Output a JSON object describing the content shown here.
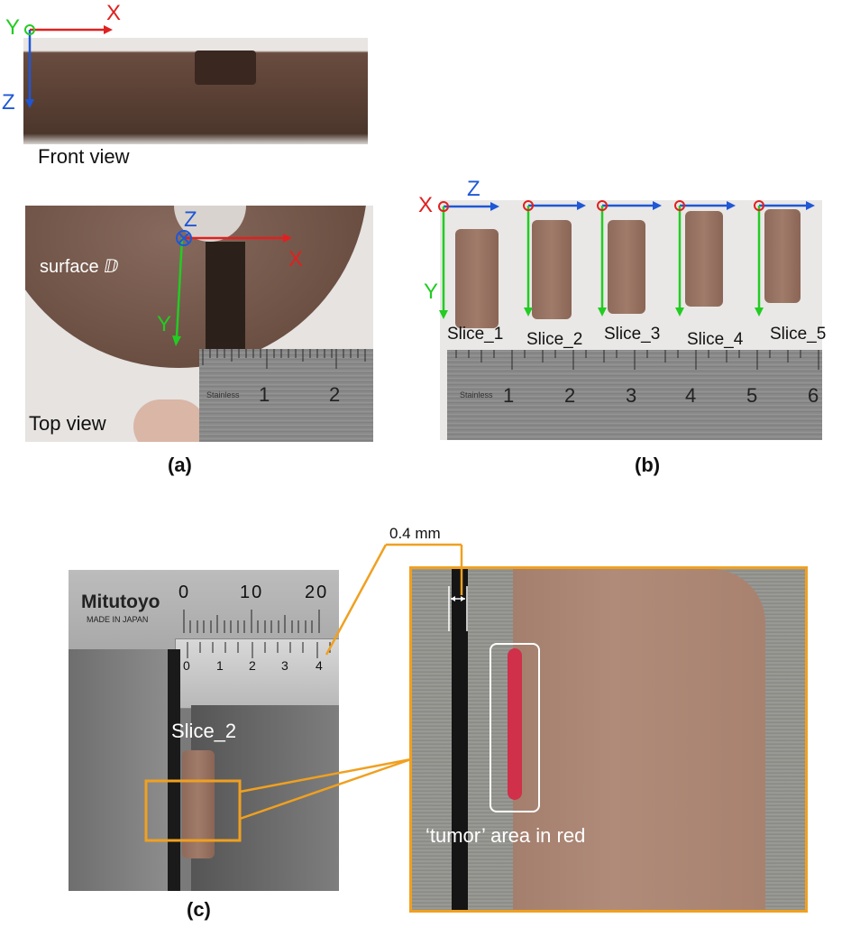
{
  "panels": {
    "a": {
      "label": "(a)",
      "front_view_caption": "Front view",
      "top_view_caption": "Top view",
      "surface_label": "surface ⅅ",
      "axes_front": {
        "y": "Y",
        "x": "X",
        "z": "Z"
      },
      "axes_top": {
        "z": "Z",
        "x": "X",
        "y": "Y"
      },
      "ruler_brand": "Stainless",
      "ruler_ticks": [
        "1",
        "2"
      ]
    },
    "b": {
      "label": "(b)",
      "axes": {
        "x": "X",
        "z": "Z",
        "y": "Y"
      },
      "slices": [
        "Slice_1",
        "Slice_2",
        "Slice_3",
        "Slice_4",
        "Slice_5"
      ],
      "ruler_brand": "Stainless",
      "ruler_ticks": [
        "1",
        "2",
        "3",
        "4",
        "5",
        "6"
      ]
    },
    "c": {
      "label": "(c)",
      "caliper_brand": "Mitutoyo",
      "caliper_origin": "MADE IN JAPAN",
      "main_scale": [
        "0",
        "10",
        "20"
      ],
      "vernier_scale": [
        "0",
        "1",
        "2",
        "3",
        "4"
      ],
      "slice_label": "Slice_2",
      "thickness_label": "0.4 mm",
      "tumor_label": "‘tumor’ area in red"
    }
  },
  "colors": {
    "x_axis": "#e02020",
    "y_axis": "#22cc22",
    "z_axis": "#1f57d6",
    "callout": "#f0a020",
    "tumor": "#d0304a"
  }
}
